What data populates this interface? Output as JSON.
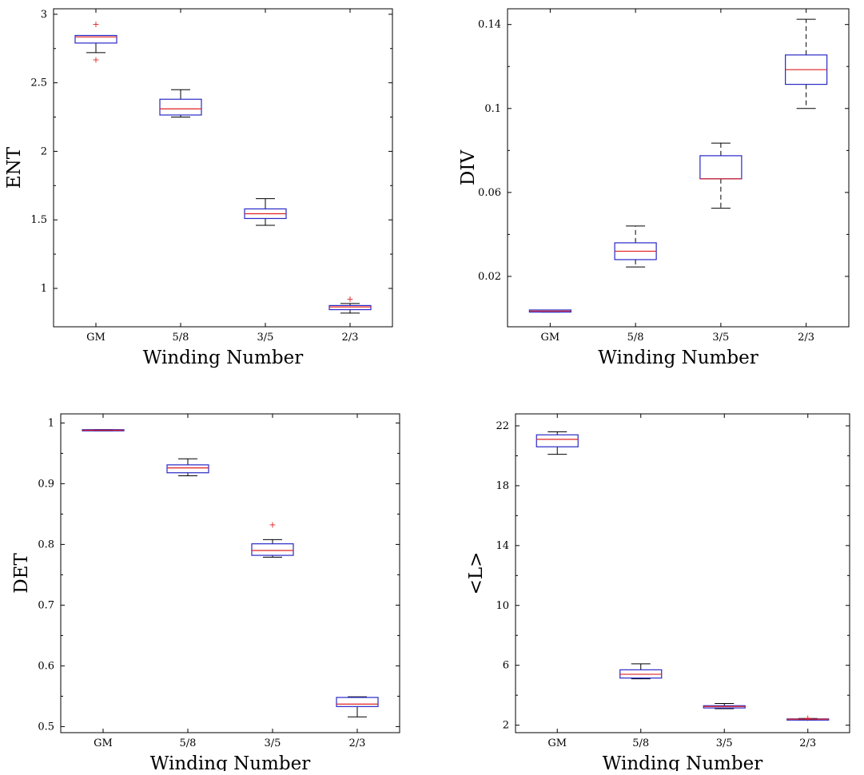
{
  "colors": {
    "box": "#2828c8",
    "median": "#e02020",
    "outlier": "#e02020",
    "axis": "#000000"
  },
  "chart_data": [
    {
      "type": "box",
      "xlabel": "Winding Number",
      "ylabel": "ENT",
      "categories": [
        "GM",
        "5/8",
        "3/5",
        "2/3"
      ],
      "yticks": [
        "1",
        "1.5",
        "2",
        "2.5",
        "3"
      ],
      "ylim": [
        0.72,
        3.04
      ],
      "grid": false,
      "boxes": [
        {
          "category": "GM",
          "whisker_low": 2.72,
          "q1": 2.79,
          "median": 2.835,
          "q3": 2.845,
          "whisker_high": 2.845,
          "outliers": [
            2.93,
            2.67
          ]
        },
        {
          "category": "5/8",
          "whisker_low": 2.25,
          "q1": 2.265,
          "median": 2.31,
          "q3": 2.38,
          "whisker_high": 2.45,
          "outliers": []
        },
        {
          "category": "3/5",
          "whisker_low": 1.46,
          "q1": 1.51,
          "median": 1.545,
          "q3": 1.58,
          "whisker_high": 1.655,
          "outliers": []
        },
        {
          "category": "2/3",
          "whisker_low": 0.82,
          "q1": 0.845,
          "median": 0.865,
          "q3": 0.875,
          "whisker_high": 0.89,
          "outliers": [
            0.925
          ]
        }
      ]
    },
    {
      "type": "box",
      "xlabel": "Winding Number",
      "ylabel": "DIV",
      "categories": [
        "GM",
        "5/8",
        "3/5",
        "2/3"
      ],
      "yticks": [
        "0.02",
        "0.06",
        "0.1",
        "0.14"
      ],
      "ylim": [
        -0.004,
        0.1475
      ],
      "grid": false,
      "boxes": [
        {
          "category": "GM",
          "whisker_low": 0.003,
          "q1": 0.003,
          "median": 0.0035,
          "q3": 0.004,
          "whisker_high": 0.004,
          "outliers": []
        },
        {
          "category": "5/8",
          "whisker_low": 0.0245,
          "q1": 0.028,
          "median": 0.032,
          "q3": 0.036,
          "whisker_high": 0.044,
          "outliers": []
        },
        {
          "category": "3/5",
          "whisker_low": 0.0525,
          "q1": 0.0665,
          "median": 0.0665,
          "q3": 0.0775,
          "whisker_high": 0.0835,
          "outliers": []
        },
        {
          "category": "2/3",
          "whisker_low": 0.1,
          "q1": 0.1115,
          "median": 0.1185,
          "q3": 0.1255,
          "whisker_high": 0.1425,
          "outliers": []
        }
      ]
    },
    {
      "type": "box",
      "xlabel": "Winding Number",
      "ylabel": "DET",
      "categories": [
        "GM",
        "5/8",
        "3/5",
        "2/3"
      ],
      "yticks": [
        "0.5",
        "0.6",
        "0.7",
        "0.8",
        "0.9",
        "1"
      ],
      "ylim": [
        0.49,
        1.015
      ],
      "grid": false,
      "boxes": [
        {
          "category": "GM",
          "whisker_low": 0.987,
          "q1": 0.987,
          "median": 0.988,
          "q3": 0.989,
          "whisker_high": 0.989,
          "outliers": []
        },
        {
          "category": "5/8",
          "whisker_low": 0.913,
          "q1": 0.918,
          "median": 0.926,
          "q3": 0.931,
          "whisker_high": 0.941,
          "outliers": []
        },
        {
          "category": "3/5",
          "whisker_low": 0.779,
          "q1": 0.782,
          "median": 0.79,
          "q3": 0.801,
          "whisker_high": 0.808,
          "outliers": [
            0.833
          ]
        },
        {
          "category": "2/3",
          "whisker_low": 0.516,
          "q1": 0.533,
          "median": 0.537,
          "q3": 0.548,
          "whisker_high": 0.549,
          "outliers": []
        }
      ]
    },
    {
      "type": "box",
      "xlabel": "Winding Number",
      "ylabel": "<L>",
      "categories": [
        "GM",
        "5/8",
        "3/5",
        "2/3"
      ],
      "yticks": [
        "2",
        "6",
        "10",
        "14",
        "18",
        "22"
      ],
      "ylim": [
        1.5,
        22.8
      ],
      "grid": false,
      "boxes": [
        {
          "category": "GM",
          "whisker_low": 20.1,
          "q1": 20.6,
          "median": 21.1,
          "q3": 21.4,
          "whisker_high": 21.6,
          "outliers": []
        },
        {
          "category": "5/8",
          "whisker_low": 5.1,
          "q1": 5.15,
          "median": 5.4,
          "q3": 5.7,
          "whisker_high": 6.1,
          "outliers": []
        },
        {
          "category": "3/5",
          "whisker_low": 3.1,
          "q1": 3.15,
          "median": 3.25,
          "q3": 3.3,
          "whisker_high": 3.45,
          "outliers": []
        },
        {
          "category": "2/3",
          "whisker_low": 2.35,
          "q1": 2.35,
          "median": 2.4,
          "q3": 2.42,
          "whisker_high": 2.45,
          "outliers": [
            2.5
          ]
        }
      ]
    }
  ]
}
